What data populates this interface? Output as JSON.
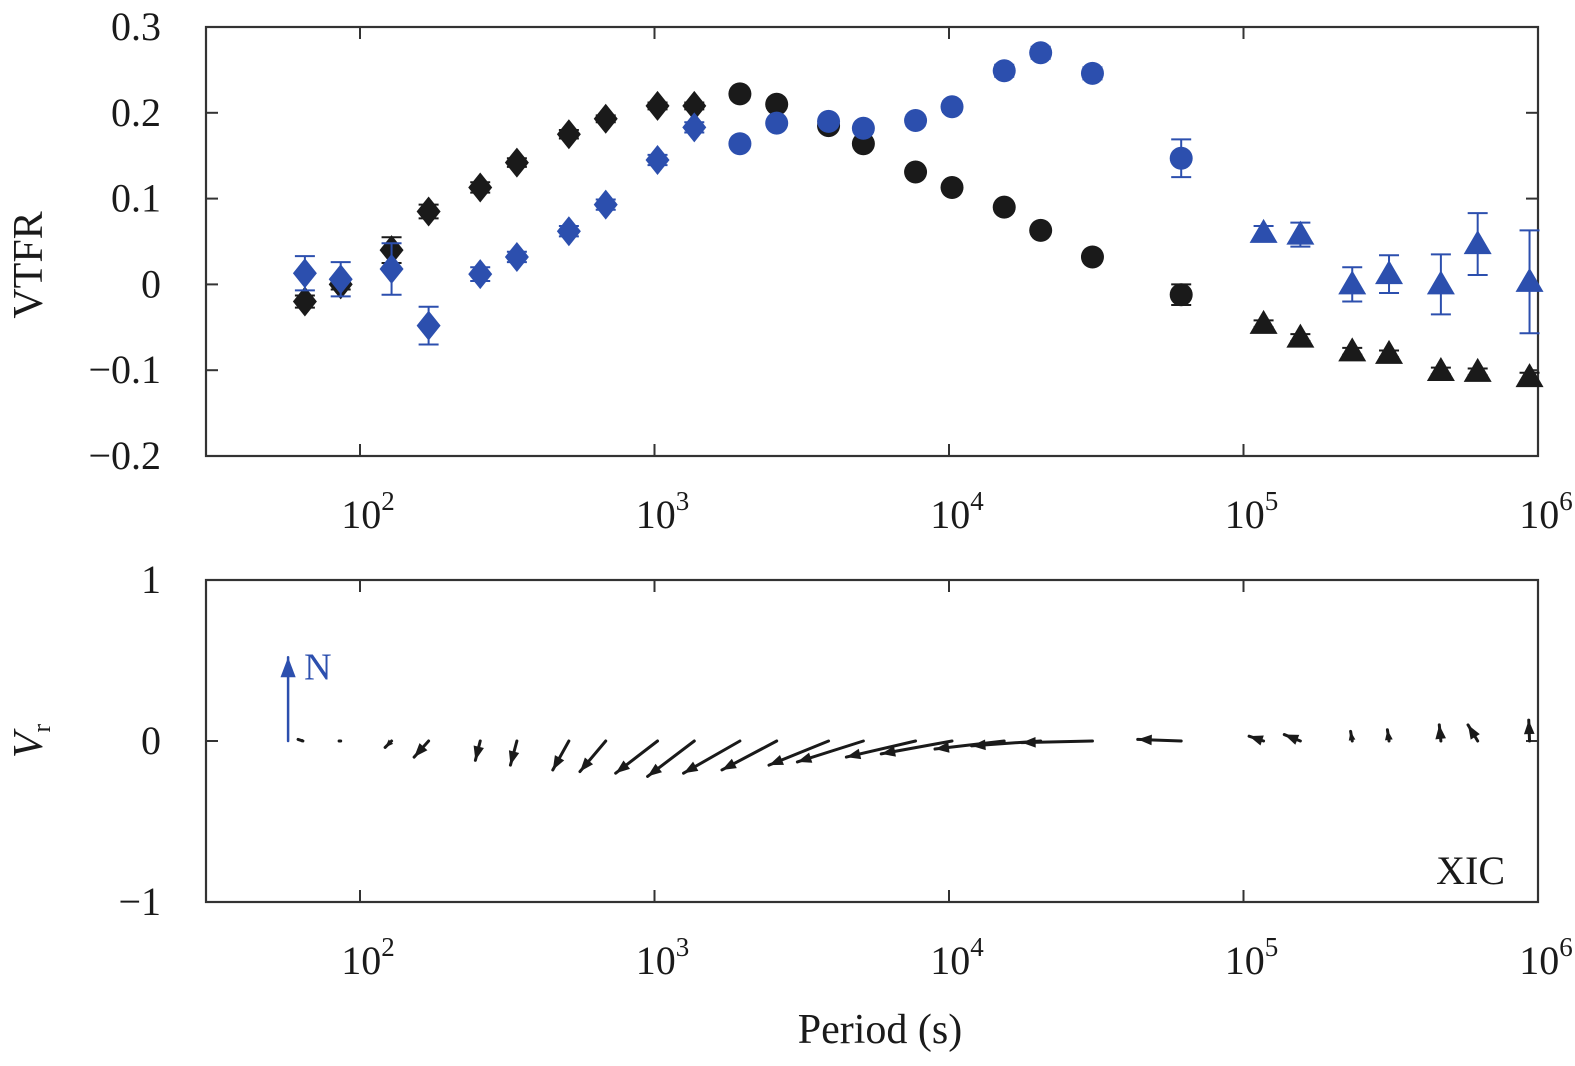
{
  "colors": {
    "black": "#1a1a1a",
    "blue": "#2c4fae",
    "axis": "#333333"
  },
  "chart_data": [
    {
      "type": "scatter",
      "xscale": "log",
      "xlim": [
        30,
        1000000
      ],
      "ylim": [
        -0.2,
        0.3
      ],
      "ylabel": "VTFR",
      "xlabel": "",
      "grid": false,
      "xticks": [
        {
          "value": 100,
          "base": "10",
          "exp": "2"
        },
        {
          "value": 1000,
          "base": "10",
          "exp": "3"
        },
        {
          "value": 10000,
          "base": "10",
          "exp": "4"
        },
        {
          "value": 100000,
          "base": "10",
          "exp": "5"
        },
        {
          "value": 1000000,
          "base": "10",
          "exp": "6"
        }
      ],
      "yticks": [
        {
          "value": 0.3,
          "label": "0.3"
        },
        {
          "value": 0.2,
          "label": "0.2"
        },
        {
          "value": 0.1,
          "label": "0.1"
        },
        {
          "value": 0,
          "label": "0"
        },
        {
          "value": -0.1,
          "label": "−0.1"
        },
        {
          "value": -0.2,
          "label": "−0.2"
        }
      ],
      "series": [
        {
          "color": "black",
          "marker": "diamond",
          "x": [
            65,
            86,
            128,
            171,
            256,
            341,
            512,
            683,
            1024,
            1365
          ],
          "y": [
            -0.02,
            0.0,
            0.04,
            0.085,
            0.113,
            0.142,
            0.175,
            0.193,
            0.208,
            0.208
          ],
          "err": [
            0.007,
            0.006,
            0.015,
            0.008,
            0.006,
            0.005,
            0.005,
            0.004,
            0.004,
            0.004
          ]
        },
        {
          "color": "black",
          "marker": "circle",
          "x": [
            1950,
            2600,
            3900,
            5120,
            7700,
            10240,
            15400,
            20480,
            30700,
            61440
          ],
          "y": [
            0.222,
            0.21,
            0.185,
            0.164,
            0.131,
            0.113,
            0.09,
            0.063,
            0.032,
            -0.012
          ],
          "err": [
            0.003,
            0.003,
            0.003,
            0.003,
            0.003,
            0.003,
            0.004,
            0.004,
            0.005,
            0.012
          ]
        },
        {
          "color": "black",
          "marker": "triangle",
          "x": [
            117000,
            156000,
            234000,
            312000,
            468000,
            624000,
            936000
          ],
          "y": [
            -0.046,
            -0.062,
            -0.078,
            -0.081,
            -0.101,
            -0.102,
            -0.108
          ],
          "err": [
            0.004,
            0.004,
            0.004,
            0.004,
            0.004,
            0.004,
            0.005
          ]
        },
        {
          "color": "blue",
          "marker": "diamond",
          "x": [
            65,
            86,
            128,
            171,
            256,
            341,
            512,
            683,
            1024,
            1365
          ],
          "y": [
            0.013,
            0.006,
            0.018,
            -0.048,
            0.012,
            0.032,
            0.062,
            0.093,
            0.145,
            0.183
          ],
          "err": [
            0.02,
            0.02,
            0.03,
            0.022,
            0.008,
            0.006,
            0.006,
            0.006,
            0.006,
            0.006
          ]
        },
        {
          "color": "blue",
          "marker": "circle",
          "x": [
            1950,
            2600,
            3900,
            5120,
            7700,
            10240,
            15400,
            20480,
            30700,
            61440
          ],
          "y": [
            0.164,
            0.188,
            0.19,
            0.182,
            0.191,
            0.207,
            0.249,
            0.27,
            0.246,
            0.147
          ],
          "err": [
            0.005,
            0.005,
            0.005,
            0.005,
            0.006,
            0.006,
            0.007,
            0.007,
            0.007,
            0.022
          ]
        },
        {
          "color": "blue",
          "marker": "triangle",
          "x": [
            117000,
            156000,
            234000,
            312000,
            468000,
            624000,
            936000
          ],
          "y": [
            0.06,
            0.058,
            0.0,
            0.012,
            0.0,
            0.047,
            0.003
          ],
          "err": [
            0.008,
            0.014,
            0.02,
            0.022,
            0.035,
            0.036,
            0.06
          ]
        }
      ]
    },
    {
      "type": "vector",
      "xscale": "log",
      "xlim": [
        30,
        1000000
      ],
      "ylim": [
        -1,
        1
      ],
      "ylabel": "V",
      "ylabel_sub": "r",
      "xlabel": "Period (s)",
      "annotation": "XIC",
      "north_label": "N",
      "grid": false,
      "xticks": [
        {
          "value": 100,
          "base": "10",
          "exp": "2"
        },
        {
          "value": 1000,
          "base": "10",
          "exp": "3"
        },
        {
          "value": 10000,
          "base": "10",
          "exp": "4"
        },
        {
          "value": 100000,
          "base": "10",
          "exp": "5"
        },
        {
          "value": 1000000,
          "base": "10",
          "exp": "6"
        }
      ],
      "yticks": [
        {
          "value": 1,
          "label": "1"
        },
        {
          "value": 0,
          "label": "0"
        },
        {
          "value": -1,
          "label": "−1"
        }
      ],
      "north_x": 57,
      "north_len": 0.52,
      "vectors": {
        "x": [
          64,
          86,
          128,
          171,
          256,
          341,
          512,
          683,
          1024,
          1365,
          1950,
          2600,
          3900,
          5120,
          7700,
          10240,
          15400,
          20480,
          30700,
          61440,
          117000,
          156000,
          234000,
          312000,
          468000,
          624000,
          936000
        ],
        "dx": [
          -0.03,
          -0.01,
          -0.04,
          -0.09,
          -0.03,
          -0.04,
          -0.1,
          -0.16,
          -0.26,
          -0.29,
          -0.35,
          -0.34,
          -0.37,
          -0.41,
          -0.43,
          -0.44,
          -0.43,
          -0.43,
          -0.44,
          -0.27,
          -0.09,
          -0.1,
          -0.01,
          -0.01,
          -0.01,
          -0.06,
          -0.005
        ],
        "dy": [
          0.01,
          0.0,
          -0.04,
          -0.1,
          -0.12,
          -0.15,
          -0.18,
          -0.19,
          -0.2,
          -0.22,
          -0.2,
          -0.18,
          -0.15,
          -0.13,
          -0.1,
          -0.08,
          -0.05,
          -0.03,
          -0.01,
          0.01,
          0.03,
          0.04,
          0.06,
          0.07,
          0.1,
          0.1,
          0.13
        ]
      }
    }
  ]
}
